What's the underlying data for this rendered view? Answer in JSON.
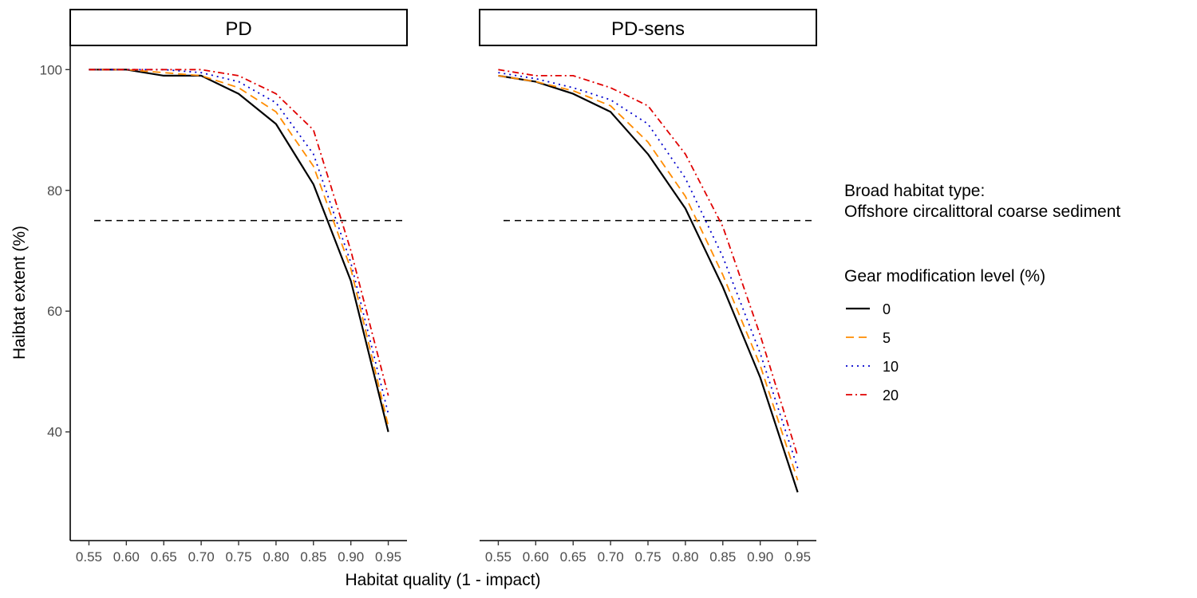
{
  "chart_data": {
    "type": "line",
    "xlabel": "Habitat quality (1 - impact)",
    "ylabel": "Haibtat extent (%)",
    "x": [
      0.55,
      0.6,
      0.65,
      0.7,
      0.75,
      0.8,
      0.85,
      0.9,
      0.95
    ],
    "x_ticks": [
      "0.55",
      "0.60",
      "0.65",
      "0.70",
      "0.75",
      "0.80",
      "0.85",
      "0.90",
      "0.95"
    ],
    "y_ticks": [
      40,
      60,
      80,
      100
    ],
    "xlim": [
      0.525,
      0.975
    ],
    "ylim": [
      22,
      104
    ],
    "reference_line": {
      "y": 75,
      "style": "dashed"
    },
    "legend": {
      "title_top_line1": "Broad habitat type:",
      "title_top_line2": "Offshore circalittoral coarse sediment",
      "title": "Gear modification level (%)",
      "placement": "right"
    },
    "series_styles": [
      {
        "name": "0",
        "color": "#000000",
        "dash": "none"
      },
      {
        "name": "5",
        "color": "#FF8C00",
        "dash": "10,6"
      },
      {
        "name": "10",
        "color": "#0000CD",
        "dash": "2,5"
      },
      {
        "name": "20",
        "color": "#E00000",
        "dash": "8,4,2,4"
      }
    ],
    "panels": [
      {
        "title": "PD",
        "series": [
          {
            "name": "0",
            "values": [
              100,
              100,
              99,
              99,
              96,
              91,
              81,
              65,
              40
            ]
          },
          {
            "name": "5",
            "values": [
              100,
              100,
              99.5,
              99,
              97,
              93,
              84,
              67,
              41
            ]
          },
          {
            "name": "10",
            "values": [
              100,
              100,
              100,
              99.5,
              98,
              94.5,
              86,
              68,
              43
            ]
          },
          {
            "name": "20",
            "values": [
              100,
              100,
              100,
              100,
              99,
              96,
              90,
              70,
              46
            ]
          }
        ]
      },
      {
        "title": "PD-sens",
        "series": [
          {
            "name": "0",
            "values": [
              99,
              98,
              96,
              93,
              86,
              77,
              64,
              49,
              30
            ]
          },
          {
            "name": "5",
            "values": [
              99,
              98,
              96.5,
              94,
              88,
              79,
              66,
              51,
              32
            ]
          },
          {
            "name": "10",
            "values": [
              99.5,
              98.5,
              97,
              95,
              91,
              82,
              69,
              53,
              34
            ]
          },
          {
            "name": "20",
            "values": [
              100,
              99,
              99,
              97,
              94,
              86,
              74,
              56,
              36
            ]
          }
        ]
      }
    ]
  }
}
